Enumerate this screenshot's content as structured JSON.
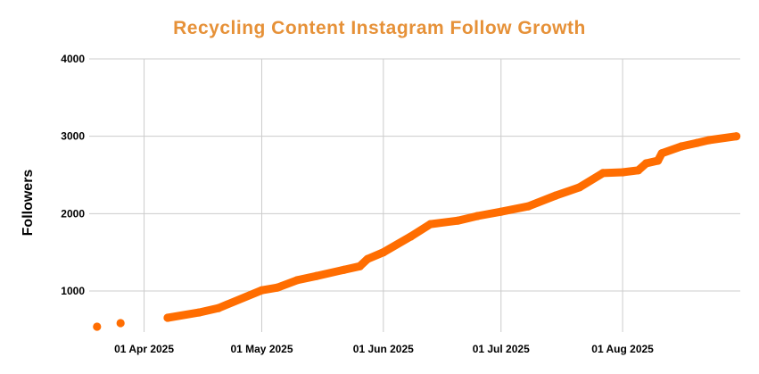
{
  "chart_data": {
    "type": "scatter",
    "title": "Recycling Content Instagram Follow Growth",
    "xlabel": "",
    "ylabel": "Followers",
    "xlim": [
      "2025-03-18",
      "2025-08-31"
    ],
    "ylim": [
      470,
      4000
    ],
    "yticks": [
      1000,
      2000,
      3000,
      4000
    ],
    "xticks": [
      "01 Apr 2025",
      "01 May 2025",
      "01 Jun 2025",
      "01 Jul 2025",
      "01 Aug 2025"
    ],
    "xtick_dates": [
      "2025-04-01",
      "2025-05-01",
      "2025-06-01",
      "2025-07-01",
      "2025-08-01"
    ],
    "grid": true,
    "legend": "none",
    "color": "#ff6d01",
    "title_color": "#e69138",
    "points": [
      {
        "x": "2025-03-20",
        "y": 539
      },
      {
        "x": "2025-03-26",
        "y": 585
      },
      {
        "x": "2025-04-07",
        "y": 655
      },
      {
        "x": "2025-04-15",
        "y": 723
      },
      {
        "x": "2025-04-20",
        "y": 780
      },
      {
        "x": "2025-05-01",
        "y": 1010
      },
      {
        "x": "2025-05-05",
        "y": 1045
      },
      {
        "x": "2025-05-10",
        "y": 1140
      },
      {
        "x": "2025-05-15",
        "y": 1195
      },
      {
        "x": "2025-05-22",
        "y": 1275
      },
      {
        "x": "2025-05-26",
        "y": 1320
      },
      {
        "x": "2025-05-28",
        "y": 1415
      },
      {
        "x": "2025-06-01",
        "y": 1500
      },
      {
        "x": "2025-06-08",
        "y": 1705
      },
      {
        "x": "2025-06-13",
        "y": 1865
      },
      {
        "x": "2025-06-20",
        "y": 1910
      },
      {
        "x": "2025-06-25",
        "y": 1970
      },
      {
        "x": "2025-07-01",
        "y": 2025
      },
      {
        "x": "2025-07-08",
        "y": 2095
      },
      {
        "x": "2025-07-15",
        "y": 2235
      },
      {
        "x": "2025-07-21",
        "y": 2340
      },
      {
        "x": "2025-07-27",
        "y": 2525
      },
      {
        "x": "2025-08-01",
        "y": 2535
      },
      {
        "x": "2025-08-05",
        "y": 2560
      },
      {
        "x": "2025-08-07",
        "y": 2650
      },
      {
        "x": "2025-08-10",
        "y": 2685
      },
      {
        "x": "2025-08-11",
        "y": 2780
      },
      {
        "x": "2025-08-16",
        "y": 2870
      },
      {
        "x": "2025-08-20",
        "y": 2915
      },
      {
        "x": "2025-08-23",
        "y": 2950
      },
      {
        "x": "2025-08-30",
        "y": 3000
      }
    ]
  }
}
